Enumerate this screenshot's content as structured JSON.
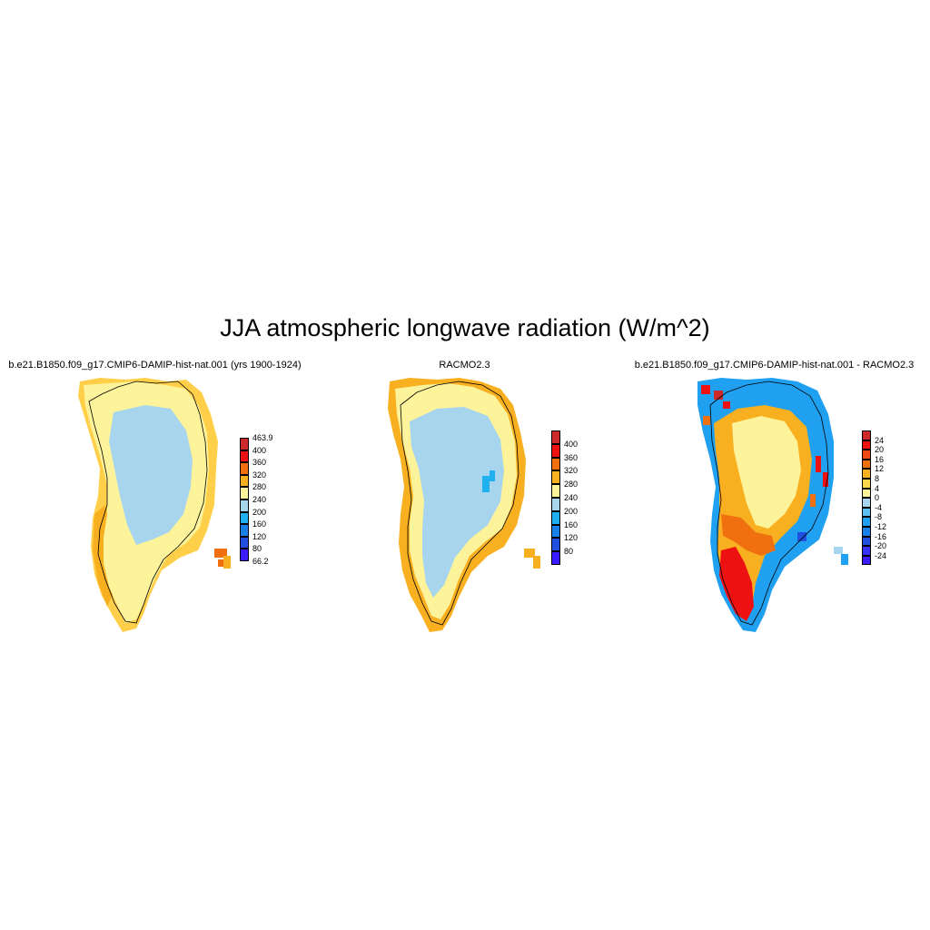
{
  "title": "JJA atmospheric longwave radiation (W/m^2)",
  "panels": [
    {
      "title": "b.e21.B1850.f09_g17.CMIP6-DAMIP-hist-nat.001 (yrs 1900-1924)",
      "colorbar": {
        "labels": [
          "463.9",
          "400",
          "360",
          "320",
          "280",
          "240",
          "200",
          "160",
          "120",
          "80",
          "66.2"
        ],
        "colors": [
          "#cc2a2a",
          "#ee1111",
          "#f07010",
          "#f8b020",
          "#fdf39a",
          "#a8d5ee",
          "#20b0f0",
          "#1880e8",
          "#2050e0",
          "#3a1aff"
        ]
      }
    },
    {
      "title": "RACMO2.3",
      "colorbar": {
        "labels": [
          "400",
          "360",
          "320",
          "280",
          "240",
          "200",
          "160",
          "120",
          "80"
        ],
        "colors": [
          "#cc2a2a",
          "#ee1111",
          "#f07010",
          "#f8b020",
          "#fdf39a",
          "#a8d5ee",
          "#20b0f0",
          "#1880e8",
          "#2050e0",
          "#3a1aff"
        ]
      }
    },
    {
      "title": "b.e21.B1850.f09_g17.CMIP6-DAMIP-hist-nat.001 - RACMO2.3",
      "colorbar": {
        "labels": [
          "24",
          "20",
          "16",
          "12",
          "8",
          "4",
          "0",
          "-4",
          "-8",
          "-12",
          "-16",
          "-20",
          "-24"
        ],
        "colors": [
          "#cc2a2a",
          "#ee1111",
          "#f04a10",
          "#f07010",
          "#f8b020",
          "#ffd84a",
          "#fdf39a",
          "#a8d5ee",
          "#5ec0f0",
          "#20a0f0",
          "#1880e8",
          "#2050e0",
          "#3a30ff",
          "#3a1aff"
        ]
      }
    }
  ],
  "map_colors": {
    "coast": "#ffcf4a",
    "margin": "#fdf39a",
    "interior": "#a8d5ee",
    "orange": "#f8b020",
    "deep_orange": "#f07010",
    "red": "#ee1111",
    "dark_red": "#cc2a2a",
    "blue": "#20a0f0",
    "dark_blue": "#2050e0",
    "outline": "#000000"
  }
}
